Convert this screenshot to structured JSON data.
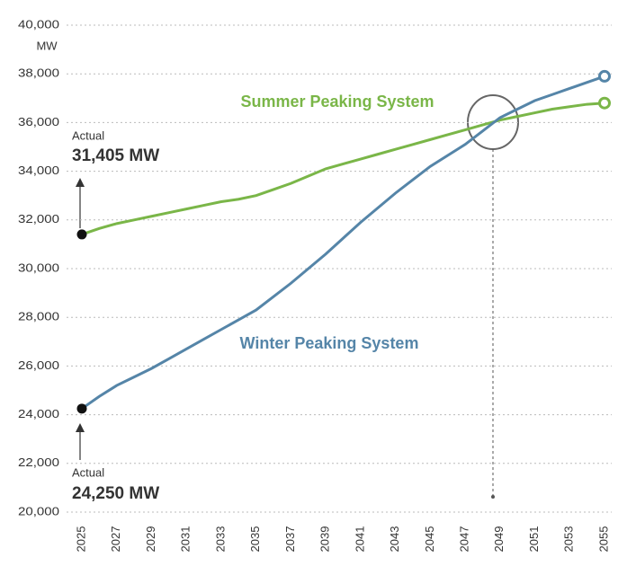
{
  "chart_data": {
    "type": "line",
    "y_label": "MW",
    "x": [
      2025,
      2026,
      2027,
      2028,
      2029,
      2030,
      2031,
      2032,
      2033,
      2034,
      2035,
      2036,
      2037,
      2038,
      2039,
      2040,
      2041,
      2042,
      2043,
      2044,
      2045,
      2046,
      2047,
      2048,
      2049,
      2050,
      2051,
      2052,
      2053,
      2054,
      2055
    ],
    "series": [
      {
        "name": "Summer Peaking System",
        "color": "#7ab648",
        "values": [
          31405,
          31650,
          31850,
          32000,
          32150,
          32300,
          32450,
          32600,
          32750,
          32850,
          33000,
          33250,
          33500,
          33800,
          34100,
          34300,
          34500,
          34700,
          34900,
          35100,
          35300,
          35500,
          35700,
          35900,
          36100,
          36250,
          36400,
          36550,
          36650,
          36750,
          36800
        ]
      },
      {
        "name": "Winter Peaking System",
        "color": "#5585a8",
        "values": [
          24250,
          24750,
          25200,
          25550,
          25900,
          26300,
          26700,
          27100,
          27500,
          27900,
          28300,
          28850,
          29400,
          30000,
          30600,
          31250,
          31900,
          32500,
          33100,
          33650,
          34200,
          34650,
          35100,
          35650,
          36200,
          36550,
          36900,
          37150,
          37400,
          37650,
          37900
        ]
      }
    ],
    "annotations": [
      {
        "title": "Actual",
        "text": "31,405 MW"
      },
      {
        "title": "Actual",
        "text": "24,250 MW"
      }
    ],
    "xlim": [
      2025,
      2055
    ],
    "xticks": [
      2025,
      2027,
      2029,
      2031,
      2033,
      2035,
      2037,
      2039,
      2041,
      2043,
      2045,
      2047,
      2049,
      2051,
      2053,
      2055
    ],
    "ylim": [
      20000,
      40000
    ],
    "yticks": [
      {
        "value": 20000,
        "label": "20,000"
      },
      {
        "value": 22000,
        "label": "22,000"
      },
      {
        "value": 24000,
        "label": "24,000"
      },
      {
        "value": 26000,
        "label": "26,000"
      },
      {
        "value": 28000,
        "label": "28,000"
      },
      {
        "value": 30000,
        "label": "30,000"
      },
      {
        "value": 32000,
        "label": "32,000"
      },
      {
        "value": 34000,
        "label": "34,000"
      },
      {
        "value": 36000,
        "label": "36,000"
      },
      {
        "value": 38000,
        "label": "38,000"
      },
      {
        "value": 40000,
        "label": "40,000"
      }
    ],
    "grid": true
  }
}
